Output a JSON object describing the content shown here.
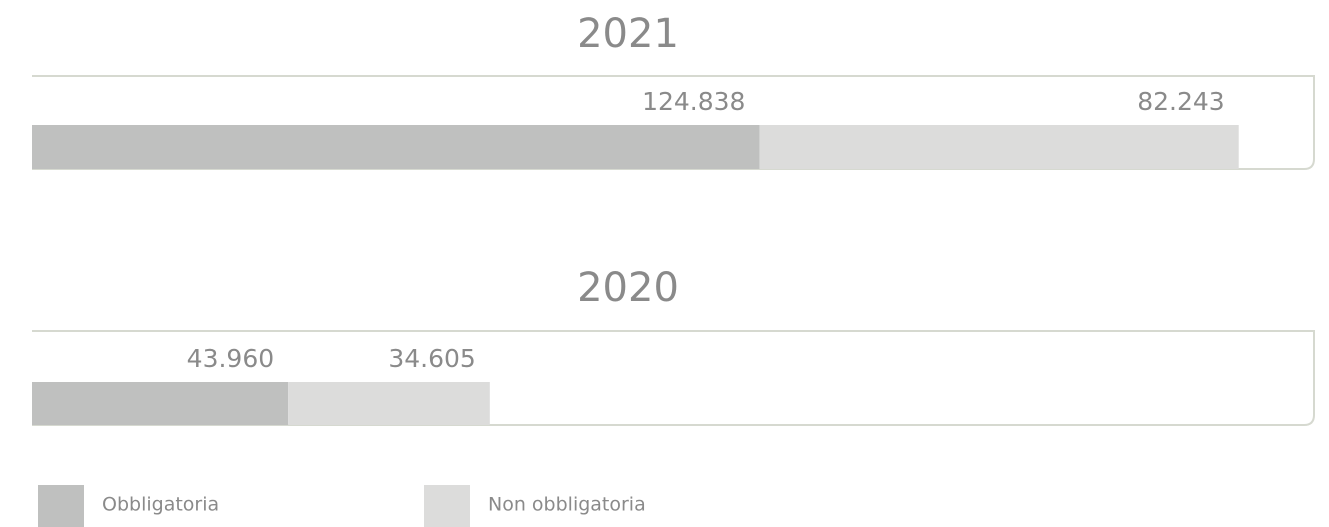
{
  "chart_data": [
    {
      "type": "bar",
      "orientation": "horizontal",
      "stacked": true,
      "title": "2021",
      "xlim": [
        0,
        220000
      ],
      "series": [
        {
          "name": "Obbligatoria",
          "color": "#bfc0bf",
          "values": [
            124838
          ],
          "value_labels": [
            "124.838"
          ]
        },
        {
          "name": "Non obbligatoria",
          "color": "#dcdcdb",
          "values": [
            82243
          ],
          "value_labels": [
            "82.243"
          ]
        }
      ]
    },
    {
      "type": "bar",
      "orientation": "horizontal",
      "stacked": true,
      "title": "2020",
      "xlim": [
        0,
        220000
      ],
      "series": [
        {
          "color": "#bfc0bf",
          "values": [
            43960
          ],
          "value_labels": [
            "43.960"
          ]
        },
        {
          "color": "#dcdcdb",
          "values": [
            34605
          ],
          "value_labels": [
            "34.605"
          ]
        }
      ]
    }
  ]
}
